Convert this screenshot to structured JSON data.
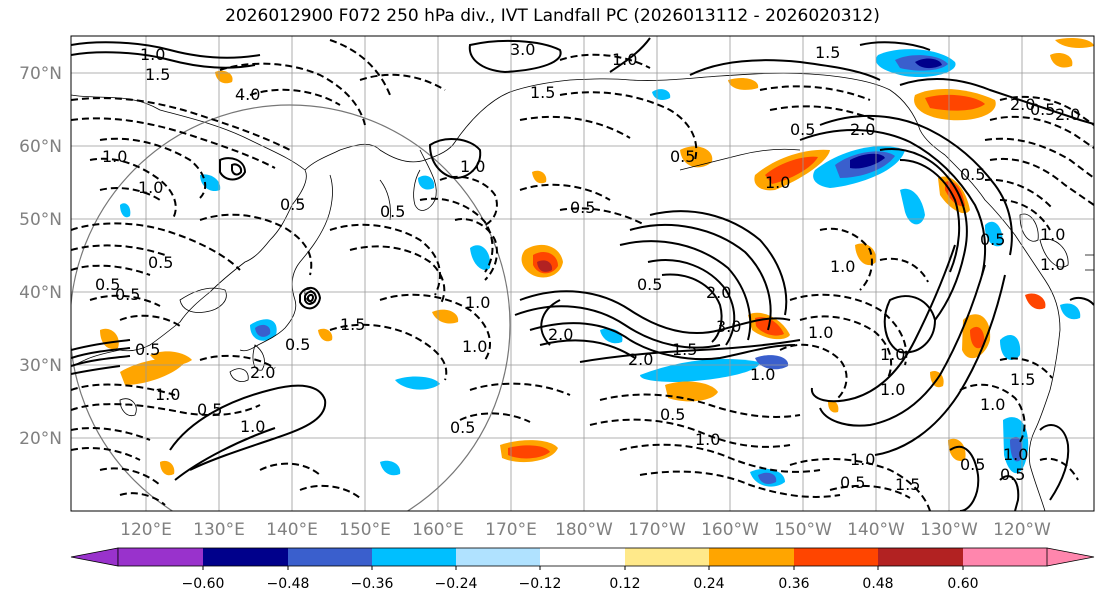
{
  "title": "2026012900 F072 250 hPa div., IVT Landfall PC (2026013112 - 2026020312)",
  "lat_labels": [
    "70°N",
    "60°N",
    "50°N",
    "40°N",
    "30°N",
    "20°N"
  ],
  "lon_labels": [
    "120°E",
    "130°E",
    "140°E",
    "150°E",
    "160°E",
    "170°E",
    "180°W",
    "170°W",
    "160°W",
    "150°W",
    "140°W",
    "130°W",
    "120°W"
  ],
  "colorbar": {
    "ticks": [
      "−0.60",
      "−0.48",
      "−0.36",
      "−0.24",
      "−0.12",
      "0.12",
      "0.24",
      "0.36",
      "0.48",
      "0.60"
    ],
    "colors": [
      "#9932cc",
      "#00008b",
      "#3a5fcd",
      "#00bfff",
      "#b0e2ff",
      "#ffffff",
      "#ffe98a",
      "#ffa500",
      "#ff4500",
      "#b22222",
      "#ff86ad"
    ]
  },
  "contour_labels": [
    "3.0",
    "1.0",
    "1.5",
    "4.0",
    "1.0",
    "2.0",
    "1.0",
    "0.5",
    "1.0",
    "0.5",
    "1.0",
    "0.5",
    "2.0",
    "1.5",
    "1.0",
    "1.0",
    "0.5",
    "1.0",
    "1.5",
    "2.0",
    "0.5",
    "1.0",
    "0.5",
    "1.0",
    "1.0",
    "0.5",
    "1.0",
    "1.5",
    "2.0",
    "0.5",
    "0.5",
    "0.5",
    "3.0",
    "0.5",
    "1.0",
    "1.0",
    "2.0",
    "0.5",
    "1.0",
    "0.5",
    "1.0",
    "2.0",
    "1.0",
    "0.5",
    "0.5",
    "2.0",
    "1.0",
    "0.5",
    "1.5",
    "1.0",
    "0.5",
    "1.0",
    "1.5",
    "0.5",
    "1.5",
    "0.5",
    "1.0",
    "0.5"
  ]
}
